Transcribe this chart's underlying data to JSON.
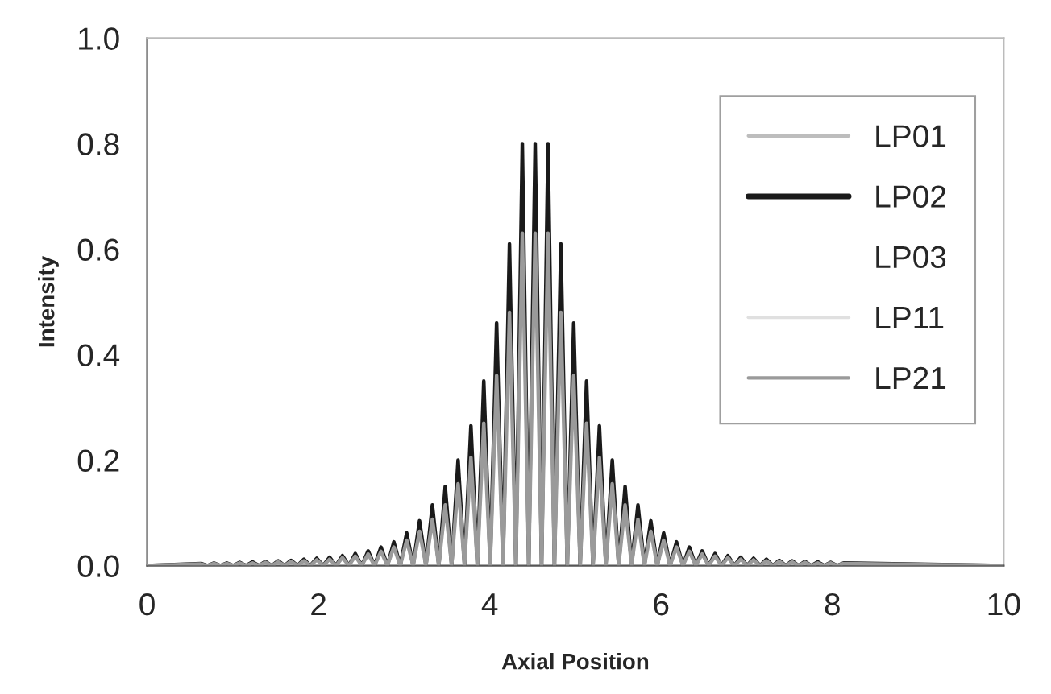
{
  "chart_data": {
    "type": "line",
    "xlabel": "Axial Position",
    "ylabel": "Intensity",
    "xlim": [
      0,
      10
    ],
    "ylim": [
      0,
      1.0
    ],
    "xticks": [
      0,
      2,
      4,
      6,
      8,
      10
    ],
    "yticks": [
      {
        "value": 0,
        "label": "0.0"
      },
      {
        "value": 0.2,
        "label": "0.2"
      },
      {
        "value": 0.4,
        "label": "0.4"
      },
      {
        "value": 0.6,
        "label": "0.6"
      },
      {
        "value": 0.8,
        "label": "0.8"
      },
      {
        "value": 1.0,
        "label": "1.0"
      }
    ],
    "grid": false,
    "legend": "top right",
    "marker": "none",
    "line_style": "solid",
    "x": [
      0,
      0.63,
      0.705,
      0.78,
      0.855,
      0.93,
      1.005,
      1.08,
      1.155,
      1.23,
      1.305,
      1.38,
      1.455,
      1.53,
      1.605,
      1.68,
      1.755,
      1.83,
      1.905,
      1.98,
      2.055,
      2.13,
      2.205,
      2.28,
      2.355,
      2.43,
      2.505,
      2.58,
      2.655,
      2.73,
      2.805,
      2.88,
      2.955,
      3.03,
      3.105,
      3.18,
      3.255,
      3.33,
      3.405,
      3.48,
      3.555,
      3.63,
      3.705,
      3.78,
      3.855,
      3.93,
      4.005,
      4.08,
      4.155,
      4.23,
      4.305,
      4.38,
      4.455,
      4.53,
      4.605,
      4.68,
      4.755,
      4.83,
      4.905,
      4.98,
      5.055,
      5.13,
      5.205,
      5.28,
      5.355,
      5.43,
      5.505,
      5.58,
      5.655,
      5.73,
      5.805,
      5.88,
      5.955,
      6.03,
      6.105,
      6.18,
      6.255,
      6.33,
      6.405,
      6.48,
      6.555,
      6.63,
      6.705,
      6.78,
      6.855,
      6.93,
      7.005,
      7.08,
      7.155,
      7.23,
      7.305,
      7.38,
      7.455,
      7.53,
      7.605,
      7.68,
      7.755,
      7.83,
      7.905,
      7.98,
      8.055,
      8.13,
      10
    ],
    "series": [
      {
        "name": "LP01",
        "color": "#bdbdbd",
        "values": [
          null,
          null,
          null,
          null,
          null,
          null,
          null,
          null,
          null,
          null,
          null,
          null,
          null,
          null,
          null,
          null,
          null,
          null,
          null,
          null,
          null,
          null,
          null,
          null,
          null,
          null,
          null,
          null,
          null,
          null,
          null,
          null,
          null,
          null,
          null,
          null,
          null,
          null,
          null,
          null,
          null,
          null,
          null,
          null,
          null,
          null,
          null,
          null,
          null,
          null,
          null,
          null,
          null,
          null,
          null,
          null,
          null,
          null,
          null,
          null,
          null,
          null,
          null,
          null,
          null,
          null,
          null,
          null,
          null,
          null,
          null,
          null,
          null,
          null,
          null,
          null,
          null,
          null,
          null,
          null,
          null,
          null,
          null,
          null,
          null,
          null,
          null,
          null,
          null,
          null,
          null,
          null,
          null,
          null,
          null,
          null,
          null,
          null,
          null,
          null,
          null,
          null,
          null
        ]
      },
      {
        "name": "LP02",
        "color": "#1a1a1a",
        "values": [
          0,
          0.004,
          0,
          0.005,
          0,
          0.005,
          0,
          0.006,
          0,
          0.007,
          0,
          0.008,
          0,
          0.009,
          0,
          0.01,
          0,
          0.012,
          0,
          0.014,
          0,
          0.016,
          0,
          0.019,
          0,
          0.023,
          0,
          0.028,
          0,
          0.035,
          0,
          0.045,
          0,
          0.062,
          0,
          0.085,
          0,
          0.115,
          0,
          0.15,
          0,
          0.2,
          0,
          0.265,
          0,
          0.35,
          0,
          0.46,
          0,
          0.61,
          0,
          0.8,
          0,
          0.8,
          0,
          0.8,
          0,
          0.61,
          0,
          0.46,
          0,
          0.35,
          0,
          0.265,
          0,
          0.2,
          0,
          0.15,
          0,
          0.115,
          0,
          0.085,
          0,
          0.062,
          0,
          0.045,
          0,
          0.035,
          0,
          0.028,
          0,
          0.023,
          0,
          0.019,
          0,
          0.016,
          0,
          0.014,
          0,
          0.012,
          0,
          0.01,
          0,
          0.009,
          0,
          0.008,
          0,
          0.007,
          0,
          0.006,
          0,
          0.005,
          0
        ]
      },
      {
        "name": "LP03",
        "values": [
          null,
          null,
          null,
          null,
          null,
          null,
          null,
          null,
          null,
          null,
          null,
          null,
          null,
          null,
          null,
          null,
          null,
          null,
          null,
          null,
          null,
          null,
          null,
          null,
          null,
          null,
          null,
          null,
          null,
          null,
          null,
          null,
          null,
          null,
          null,
          null,
          null,
          null,
          null,
          null,
          null,
          null,
          null,
          null,
          null,
          null,
          null,
          null,
          null,
          null,
          null,
          null,
          null,
          null,
          null,
          null,
          null,
          null,
          null,
          null,
          null,
          null,
          null,
          null,
          null,
          null,
          null,
          null,
          null,
          null,
          null,
          null,
          null,
          null,
          null,
          null,
          null,
          null,
          null,
          null,
          null,
          null,
          null,
          null,
          null,
          null,
          null,
          null,
          null,
          null,
          null,
          null,
          null,
          null,
          null,
          null,
          null,
          null,
          null,
          null,
          null,
          null,
          null
        ]
      },
      {
        "name": "LP11",
        "color": "#e0e0e0",
        "values": [
          null,
          null,
          null,
          null,
          null,
          null,
          null,
          null,
          null,
          null,
          null,
          null,
          null,
          null,
          null,
          null,
          null,
          null,
          null,
          null,
          null,
          null,
          null,
          null,
          null,
          null,
          null,
          null,
          null,
          null,
          null,
          null,
          null,
          null,
          null,
          null,
          null,
          null,
          null,
          null,
          null,
          null,
          null,
          null,
          null,
          null,
          null,
          null,
          null,
          null,
          null,
          null,
          null,
          null,
          null,
          null,
          null,
          null,
          null,
          null,
          null,
          null,
          null,
          null,
          null,
          null,
          null,
          null,
          null,
          null,
          null,
          null,
          null,
          null,
          null,
          null,
          null,
          null,
          null,
          null,
          null,
          null,
          null,
          null,
          null,
          null,
          null,
          null,
          null,
          null,
          null,
          null,
          null,
          null,
          null,
          null,
          null,
          null,
          null,
          null,
          null,
          null,
          null
        ]
      },
      {
        "name": "LP21",
        "color": "#9a9a9a",
        "values": [
          0,
          0.003,
          0,
          0.004,
          0,
          0.004,
          0,
          0.005,
          0,
          0.005,
          0,
          0.006,
          0,
          0.007,
          0,
          0.008,
          0,
          0.009,
          0,
          0.011,
          0,
          0.012,
          0,
          0.015,
          0,
          0.018,
          0,
          0.022,
          0,
          0.027,
          0,
          0.035,
          0,
          0.048,
          0,
          0.065,
          0,
          0.088,
          0,
          0.115,
          0,
          0.155,
          0,
          0.205,
          0,
          0.27,
          0,
          0.36,
          0,
          0.48,
          0,
          0.63,
          0,
          0.63,
          0,
          0.63,
          0,
          0.48,
          0,
          0.36,
          0,
          0.27,
          0,
          0.205,
          0,
          0.155,
          0,
          0.115,
          0,
          0.088,
          0,
          0.065,
          0,
          0.048,
          0,
          0.035,
          0,
          0.027,
          0,
          0.022,
          0,
          0.018,
          0,
          0.015,
          0,
          0.012,
          0,
          0.011,
          0,
          0.009,
          0,
          0.008,
          0,
          0.007,
          0,
          0.006,
          0,
          0.005,
          0,
          0.005,
          0,
          0.004,
          0
        ]
      }
    ]
  }
}
